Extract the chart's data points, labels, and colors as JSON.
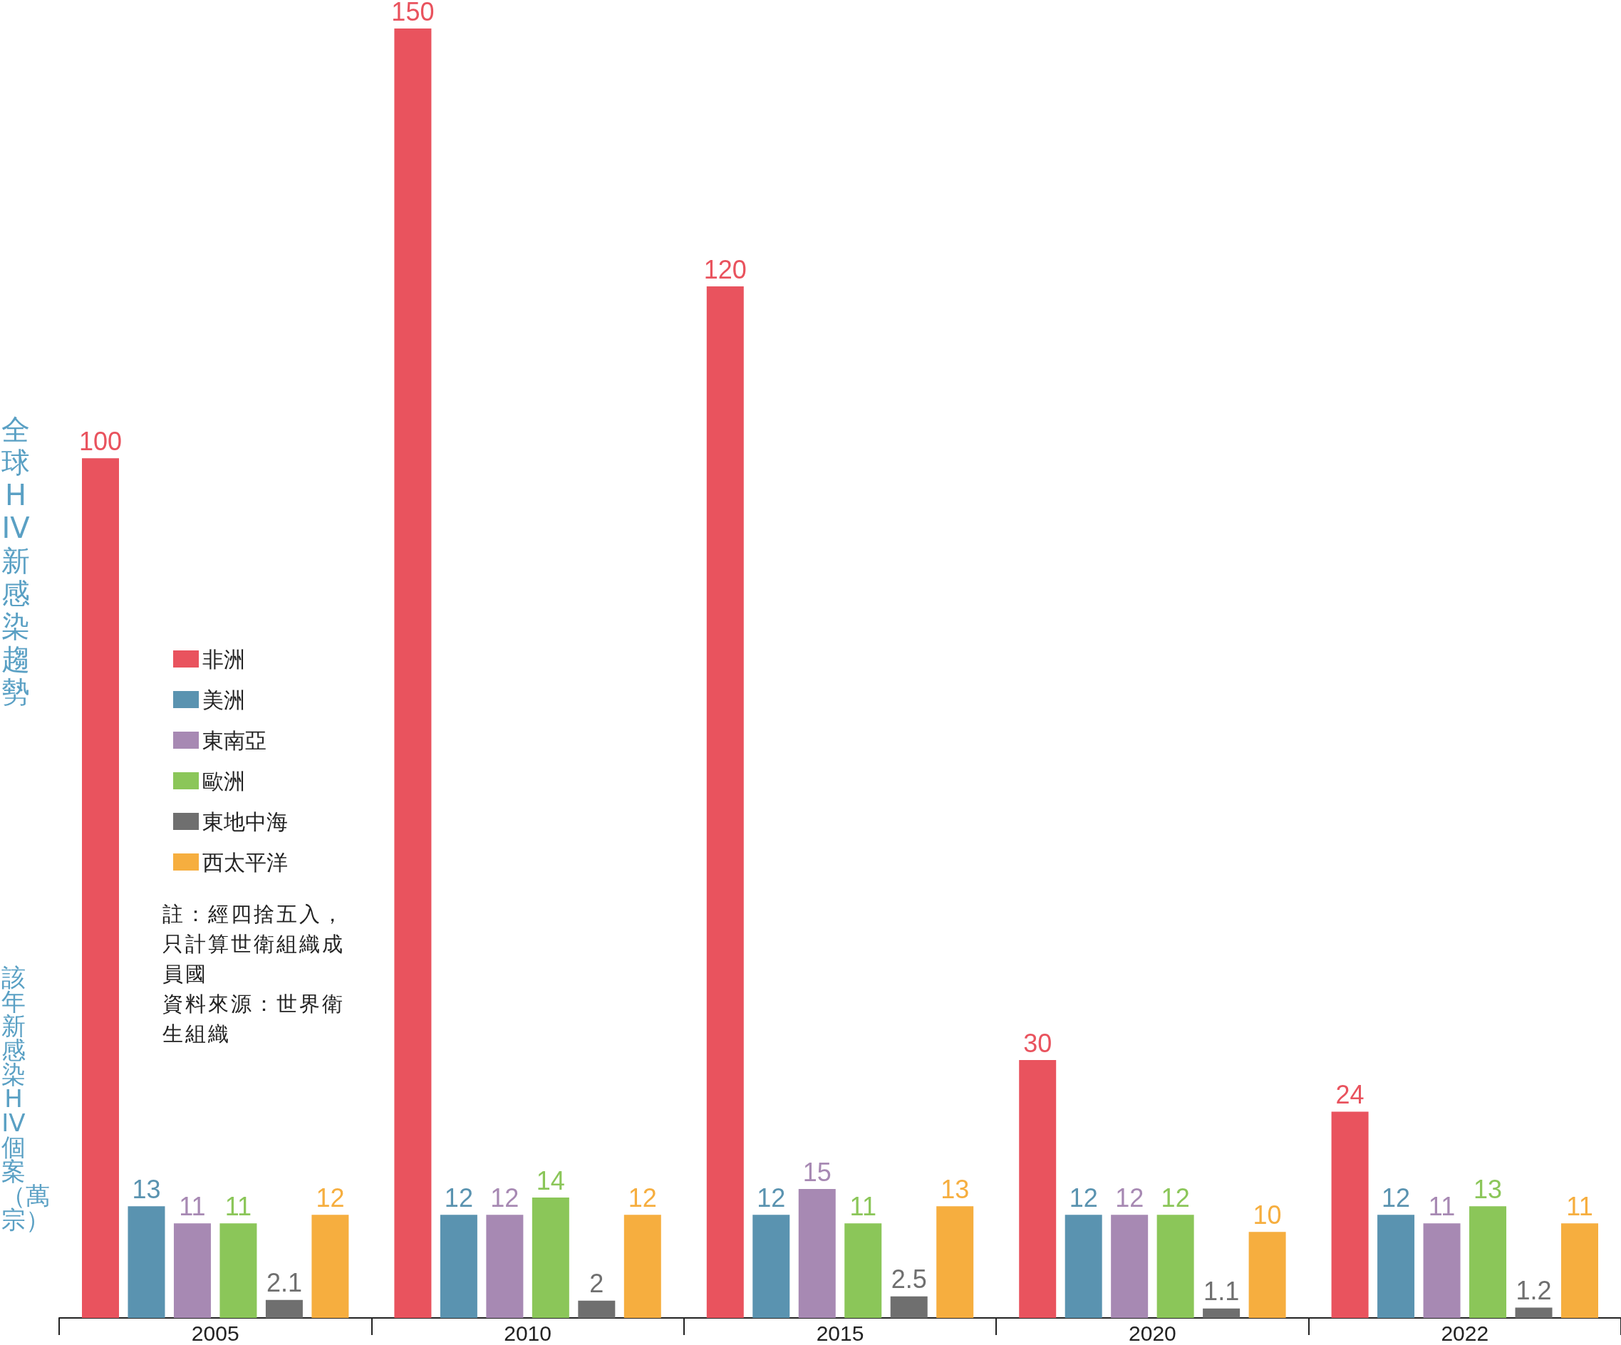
{
  "chart_data": {
    "type": "bar",
    "title": "全球 HIV 新感染趨勢",
    "ylabel": "該年新感染 HIV 個案（萬宗）",
    "categories": [
      "2005",
      "2010",
      "2015",
      "2020",
      "2022"
    ],
    "series": [
      {
        "name": "非洲",
        "color": "#e9535e",
        "values": [
          100,
          150,
          120,
          30,
          24
        ]
      },
      {
        "name": "美洲",
        "color": "#5a93b0",
        "values": [
          13,
          12,
          12,
          12,
          12
        ]
      },
      {
        "name": "東南亞",
        "color": "#a789b3",
        "values": [
          11,
          12,
          15,
          12,
          11
        ]
      },
      {
        "name": "歐洲",
        "color": "#8bc659",
        "values": [
          11,
          14,
          11,
          12,
          13
        ]
      },
      {
        "name": "東地中海",
        "color": "#6f6f6f",
        "values": [
          2.1,
          2,
          2.5,
          1.1,
          1.2
        ]
      },
      {
        "name": "西太平洋",
        "color": "#f6ae3f",
        "values": [
          12,
          12,
          13,
          10,
          11
        ]
      }
    ],
    "data_labels": true,
    "grid": false,
    "legend": "left",
    "annotations": [
      "註：經四捨五入，只計算世衛組織成員國",
      "資料來源：世界衛生組織"
    ]
  }
}
